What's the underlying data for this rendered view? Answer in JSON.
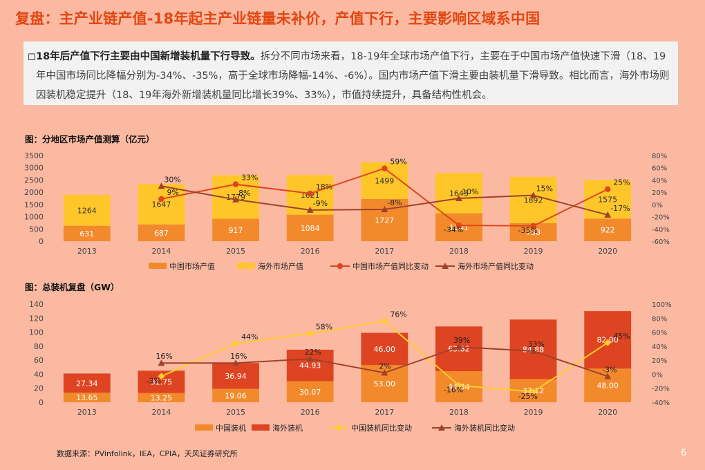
{
  "title": "复盘：主产业链产值-18年起主产业链量未补价，产值下行，主要影响区域系中国",
  "summary": {
    "bullet": "◻",
    "bold": "18年后产值下行主要由中国新增装机量下行导致。",
    "text": "拆分不同市场来看，18-19年全球市场产值下行，主要在于中国市场产值快速下滑（18、19年中国市场同比降幅分别为-34%、-35%，高于全球市场降幅-14%、-6%）。国内市场产值下滑主要由装机量下滑导致。相比而言，海外市场则因装机稳定提升（18、19年海外新增装机量同比增长39%、33%），市值持续提升，具备结构性机会。"
  },
  "source": "数据来源：PVinfolink，IEA，CPIA，天风证券研究所",
  "page_number": "6",
  "chart_data": [
    {
      "type": "bar",
      "stacked": true,
      "title": "图：分地区市场产值测算（亿元）",
      "categories": [
        "2013",
        "2014",
        "2015",
        "2016",
        "2017",
        "2018",
        "2019",
        "2020"
      ],
      "ylim": [
        0,
        3500
      ],
      "yticks": [
        "0",
        "500",
        "1000",
        "1500",
        "2000",
        "2500",
        "3000",
        "3500"
      ],
      "y2lim": [
        -0.6,
        0.8
      ],
      "y2ticks": [
        "-60%",
        "-40%",
        "-20%",
        "0%",
        "20%",
        "40%",
        "60%",
        "80%"
      ],
      "grid": false,
      "legend_position": "bottom",
      "series": [
        {
          "name": "中国市场产值",
          "kind": "bar",
          "color": "#f28a2c",
          "values": [
            631,
            687,
            917,
            1084,
            1727,
            1141,
            738,
            922
          ],
          "labels": [
            "631",
            "687",
            "917",
            "1084",
            "1727",
            "1141",
            "738",
            "922"
          ]
        },
        {
          "name": "海外市场产值",
          "kind": "bar",
          "color": "#ffc62a",
          "values": [
            1264,
            1647,
            1779,
            1621,
            1499,
            1643,
            1892,
            1575
          ],
          "labels": [
            "1264",
            "1647",
            "1779",
            "1621",
            "1499",
            "1643",
            "1892",
            "1575"
          ]
        },
        {
          "name": "中国市场产值同比变动",
          "kind": "line",
          "marker": "circle",
          "color": "#e0451b",
          "axis": "right",
          "values": [
            null,
            0.09,
            0.33,
            0.18,
            0.59,
            -0.34,
            -0.35,
            0.25
          ],
          "labels": [
            "",
            "9%",
            "33%",
            "18%",
            "59%",
            "-34%",
            "-35%",
            "25%"
          ]
        },
        {
          "name": "海外市场产值同比变动",
          "kind": "line",
          "marker": "triangle",
          "color": "#a0412a",
          "axis": "right",
          "values": [
            null,
            0.3,
            0.08,
            -0.09,
            -0.08,
            0.1,
            0.15,
            -0.17
          ],
          "labels": [
            "",
            "30%",
            "8%",
            "-9%",
            "-8%",
            "10%",
            "15%",
            "-17%"
          ]
        }
      ]
    },
    {
      "type": "bar",
      "stacked": true,
      "title": "图：总装机复盘（GW）",
      "categories": [
        "2013",
        "2014",
        "2015",
        "2016",
        "2017",
        "2018",
        "2019",
        "2020"
      ],
      "ylim": [
        0,
        140
      ],
      "yticks": [
        "0",
        "20",
        "40",
        "60",
        "80",
        "100",
        "120",
        "140"
      ],
      "y2lim": [
        -0.4,
        1.0
      ],
      "y2ticks": [
        "-40%",
        "-20%",
        "0%",
        "20%",
        "40%",
        "60%",
        "80%",
        "100%"
      ],
      "grid": false,
      "legend_position": "bottom",
      "series": [
        {
          "name": "中国装机",
          "kind": "bar",
          "color": "#f28a2c",
          "values": [
            13.65,
            13.25,
            19.06,
            30.07,
            53.0,
            44.34,
            33.12,
            48.0
          ],
          "labels": [
            "13.65",
            "13.25",
            "19.06",
            "30.07",
            "53.00",
            "44.34",
            "33.12",
            "48.00"
          ]
        },
        {
          "name": "海外装机",
          "kind": "bar",
          "color": "#de4421",
          "values": [
            27.34,
            31.75,
            36.94,
            44.93,
            46.0,
            63.82,
            84.88,
            82.0
          ],
          "labels": [
            "27.34",
            "31.75",
            "36.94",
            "44.93",
            "46.00",
            "63.82",
            "84.88",
            "82.00"
          ]
        },
        {
          "name": "中国装机同比变动",
          "kind": "line",
          "marker": "diamond",
          "color": "#ffcc2a",
          "axis": "right",
          "values": [
            null,
            -0.03,
            0.44,
            0.58,
            0.76,
            -0.16,
            -0.25,
            0.45
          ],
          "labels": [
            "",
            "-3%",
            "44%",
            "58%",
            "76%",
            "-16%",
            "-25%",
            "45%"
          ]
        },
        {
          "name": "海外装机同比变动",
          "kind": "line",
          "marker": "triangle",
          "color": "#a0412a",
          "axis": "right",
          "values": [
            null,
            0.16,
            0.16,
            0.22,
            0.02,
            0.39,
            0.33,
            -0.03
          ],
          "labels": [
            "",
            "16%",
            "16%",
            "22%",
            "2%",
            "39%",
            "33%",
            "-3%"
          ]
        }
      ]
    }
  ]
}
